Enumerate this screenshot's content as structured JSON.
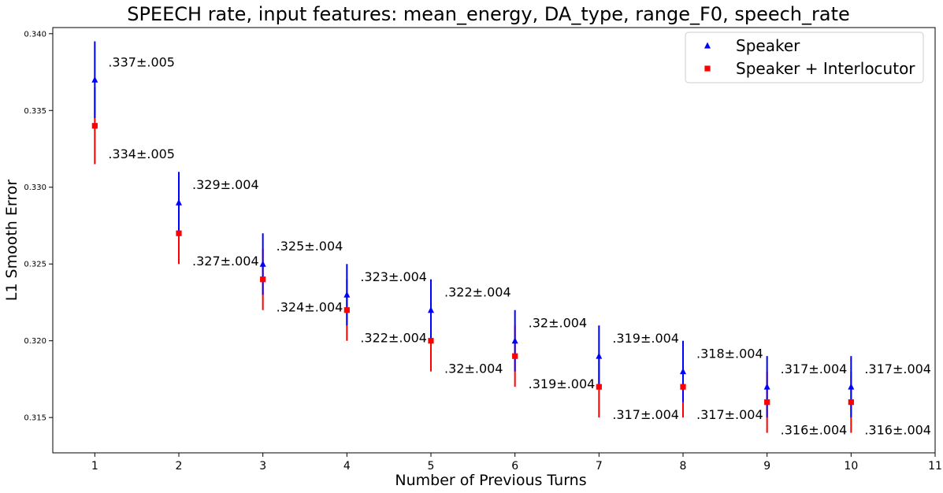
{
  "chart_data": {
    "type": "scatter",
    "title": "SPEECH rate, input features: mean_energy, DA_type, range_F0, speech_rate",
    "xlabel": "Number of Previous Turns",
    "ylabel": "L1 Smooth Error",
    "xlim": [
      0.5,
      11
    ],
    "ylim": [
      0.3127,
      0.3404
    ],
    "x_ticks": [
      "1",
      "2",
      "3",
      "4",
      "5",
      "6",
      "7",
      "8",
      "9",
      "10",
      "11"
    ],
    "y_ticks": [
      "0.315",
      "0.320",
      "0.325",
      "0.330",
      "0.335",
      "0.340"
    ],
    "x": [
      1,
      2,
      3,
      4,
      5,
      6,
      7,
      8,
      9,
      10
    ],
    "grid": false,
    "legend_position": "top-right",
    "series": [
      {
        "name": "Speaker",
        "color": "#0000ff",
        "marker": "triangle",
        "values": [
          0.337,
          0.329,
          0.325,
          0.323,
          0.322,
          0.32,
          0.319,
          0.318,
          0.317,
          0.317
        ],
        "errors": [
          0.0025,
          0.002,
          0.002,
          0.002,
          0.002,
          0.002,
          0.002,
          0.002,
          0.002,
          0.002
        ],
        "labels": [
          ".337±.005",
          ".329±.004",
          ".325±.004",
          ".323±.004",
          ".322±.004",
          ".32±.004",
          ".319±.004",
          ".318±.004",
          ".317±.004",
          ".317±.004"
        ]
      },
      {
        "name": "Speaker + Interlocutor",
        "color": "#ff0000",
        "marker": "square",
        "values": [
          0.334,
          0.327,
          0.324,
          0.322,
          0.32,
          0.319,
          0.317,
          0.317,
          0.316,
          0.316
        ],
        "errors": [
          0.0025,
          0.002,
          0.002,
          0.002,
          0.002,
          0.002,
          0.002,
          0.002,
          0.002,
          0.002
        ],
        "labels": [
          ".334±.005",
          ".327±.004",
          ".324±.004",
          ".322±.004",
          ".32±.004",
          ".319±.004",
          ".317±.004",
          ".317±.004",
          ".316±.004",
          ".316±.004"
        ]
      }
    ]
  }
}
